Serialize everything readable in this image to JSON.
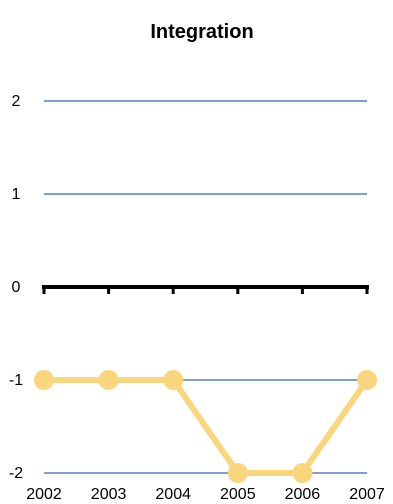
{
  "chart_data": {
    "type": "line",
    "title": "Integration",
    "xlabel": "",
    "ylabel": "",
    "categories": [
      "2002",
      "2003",
      "2004",
      "2005",
      "2006",
      "2007"
    ],
    "series": [
      {
        "values": [
          -1,
          -1,
          -1,
          -2,
          -2,
          -1
        ],
        "color": "#F9D67E"
      }
    ],
    "ylim": [
      -2,
      2
    ],
    "yticks": [
      2,
      1,
      0,
      -1,
      -2
    ],
    "grid": true,
    "gridline_color": "#7F9FCF",
    "zero_axis_color": "#000000",
    "legend": "none"
  }
}
